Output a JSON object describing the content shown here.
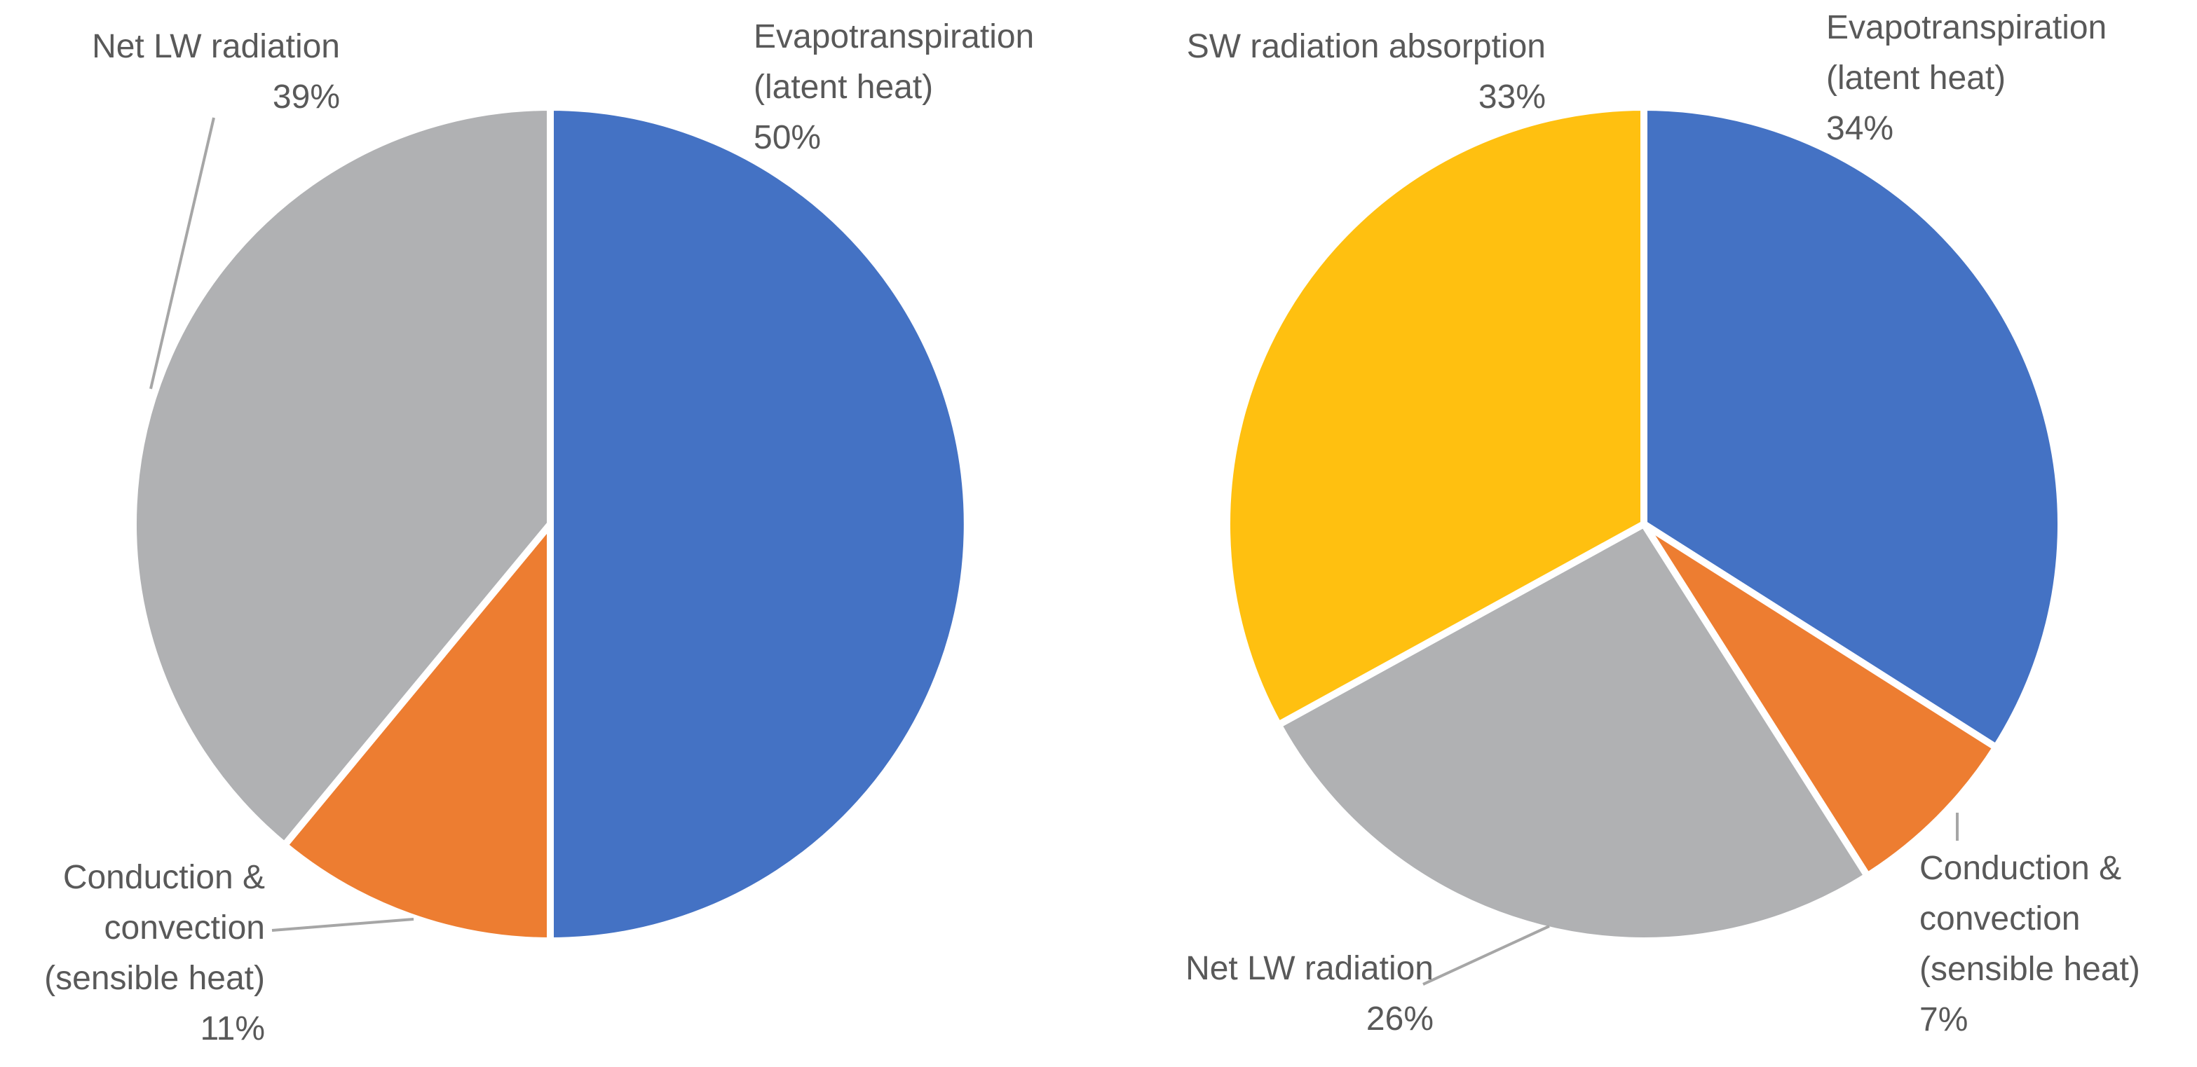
{
  "chart_data": [
    {
      "type": "pie",
      "title": "",
      "slices": [
        {
          "name": "Evapotranspiration (latent heat)",
          "label_lines": [
            "Evapotranspiration",
            "(latent heat)"
          ],
          "value": 50,
          "value_label": "50%",
          "color": "#4472C4"
        },
        {
          "name": "Conduction & convection (sensible heat)",
          "label_lines": [
            "Conduction &",
            "convection",
            "(sensible heat)"
          ],
          "value": 11,
          "value_label": "11%",
          "color": "#ED7D31"
        },
        {
          "name": "Net LW radiation",
          "label_lines": [
            "Net LW radiation"
          ],
          "value": 39,
          "value_label": "39%",
          "color": "#B0B1B3"
        }
      ]
    },
    {
      "type": "pie",
      "title": "",
      "slices": [
        {
          "name": "Evapotranspiration (latent heat)",
          "label_lines": [
            "Evapotranspiration",
            "(latent heat)"
          ],
          "value": 34,
          "value_label": "34%",
          "color": "#4472C4"
        },
        {
          "name": "Conduction & convection (sensible heat)",
          "label_lines": [
            "Conduction &",
            "convection",
            "(sensible heat)"
          ],
          "value": 7,
          "value_label": "7%",
          "color": "#ED7D31"
        },
        {
          "name": "Net LW radiation",
          "label_lines": [
            "Net LW radiation"
          ],
          "value": 26,
          "value_label": "26%",
          "color": "#B0B1B3"
        },
        {
          "name": "SW radiation absorption",
          "label_lines": [
            "SW radiation absorption"
          ],
          "value": 33,
          "value_label": "33%",
          "color": "#FFC010"
        }
      ]
    }
  ]
}
